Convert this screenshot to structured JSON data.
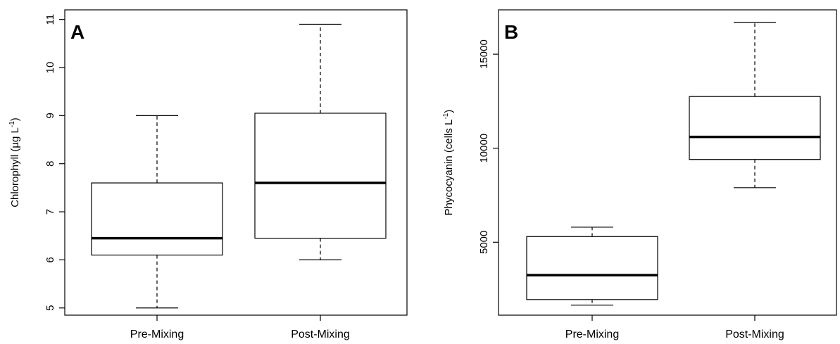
{
  "chart_data": [
    {
      "panel_label": "A",
      "type": "box",
      "ylabel": "Chlorophyll (µg L",
      "ylabel_sup": "-1",
      "ylabel_close": ")",
      "ylim": [
        4.85,
        11.2
      ],
      "yticks": [
        5,
        6,
        7,
        8,
        9,
        10,
        11
      ],
      "ytick_labels": [
        "5",
        "6",
        "7",
        "8",
        "9",
        "10",
        "11"
      ],
      "categories": [
        "Pre-Mixing",
        "Post-Mixing"
      ],
      "boxes": [
        {
          "name": "Pre-Mixing",
          "min": 5.0,
          "q1": 6.1,
          "median": 6.45,
          "q3": 7.6,
          "max": 9.0
        },
        {
          "name": "Post-Mixing",
          "min": 6.0,
          "q1": 6.45,
          "median": 7.6,
          "q3": 9.05,
          "max": 10.9
        }
      ]
    },
    {
      "panel_label": "B",
      "type": "box",
      "ylabel": "Phycocyanin (cells L",
      "ylabel_sup": "-1",
      "ylabel_close": ")",
      "ylim": [
        1120,
        17360
      ],
      "yticks": [
        5000,
        10000,
        15000
      ],
      "ytick_labels": [
        "5000",
        "10000",
        "15000"
      ],
      "categories": [
        "Pre-Mixing",
        "Post-Mixing"
      ],
      "boxes": [
        {
          "name": "Pre-Mixing",
          "min": 1650,
          "q1": 1950,
          "median": 3250,
          "q3": 5300,
          "max": 5800
        },
        {
          "name": "Post-Mixing",
          "min": 7900,
          "q1": 9400,
          "median": 10600,
          "q3": 12750,
          "max": 16700
        }
      ]
    }
  ]
}
